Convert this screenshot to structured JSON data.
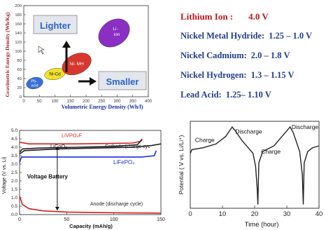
{
  "energy_density_chart": {
    "ylabel": "Gravimetric Energy Density (Wh/Kg)",
    "xlabel": "Volumetric Energy Density (Wh/l)",
    "lighter_label": "Lighter",
    "smaller_label": "Smaller",
    "chart_data": {
      "type": "scatter",
      "xlim": [
        0,
        400
      ],
      "ylim": [
        0,
        200
      ],
      "xticks": [
        "0",
        "50",
        "100",
        "150",
        "200",
        "250",
        "300",
        "350",
        "400"
      ],
      "yticks": [
        "0",
        "20",
        "40",
        "60",
        "80",
        "100",
        "120",
        "140",
        "160",
        "180",
        "200"
      ],
      "regions": [
        {
          "label": "Pb-acid",
          "x": 35,
          "y": 30,
          "color": "#3a6fd8"
        },
        {
          "label": "Ni-Cd",
          "x": 100,
          "y": 50,
          "color": "#f2e22a"
        },
        {
          "label": "Ni- MH",
          "x": 170,
          "y": 72,
          "color": "#d8372f"
        },
        {
          "label": "Li-ion",
          "x": 290,
          "y": 140,
          "color": "#8a2ec4"
        }
      ]
    }
  },
  "voltage_list": {
    "rows": [
      {
        "label": "Lithium Ion :",
        "value": "4.0 V",
        "color": "#c0171b"
      },
      {
        "label": "Nickel Metal Hydride:",
        "value": "1.25 – 1.0 V",
        "color": "#1f3e8c"
      },
      {
        "label": "Nickel Cadmium:",
        "value": "2.0 – 1.8 V",
        "color": "#1f3e8c"
      },
      {
        "label": "Nickel Hydrogen:",
        "value": "1.3 – 1.15 V",
        "color": "#1f3e8c"
      },
      {
        "label": "Lead Acid:",
        "value": "1.25– 1.10 V",
        "color": "#1f3e8c"
      }
    ]
  },
  "capacity_chart": {
    "ylabel": "Voltage (V vs. Li)",
    "xlabel": "Capacity (mAh/g)",
    "annotations": {
      "livpo": "LiVPO₄F",
      "licoo": "LiCoO₂",
      "cathode": "Cathode (charge cyc",
      "lifepo": "LiFePO₄",
      "voltage_battery": "Voltage Battery",
      "anode": "Anode (discharge cycle)"
    },
    "chart_data": {
      "type": "line",
      "xlim": [
        0,
        150
      ],
      "ylim": [
        0,
        5
      ],
      "xticks": [
        "0",
        "50",
        "100",
        "150"
      ],
      "yticks": [
        "0.0",
        "0.5",
        "1.0",
        "1.5",
        "2.0",
        "2.5",
        "3.0",
        "3.5",
        "4.0",
        "4.5",
        "5.0"
      ],
      "series": [
        {
          "name": "LiVPO₄F",
          "color": "#d42020",
          "x": [
            0,
            10,
            30,
            60,
            90,
            120,
            128,
            130
          ],
          "y": [
            4.3,
            4.2,
            4.2,
            4.2,
            4.22,
            4.25,
            4.35,
            4.5
          ]
        },
        {
          "name": "LiCoO₂",
          "color": "#222222",
          "x": [
            0,
            3,
            20,
            60,
            100,
            125,
            130
          ],
          "y": [
            3.7,
            3.9,
            3.95,
            4.0,
            4.05,
            4.15,
            4.45
          ]
        },
        {
          "name": "Cathode (charge cyc",
          "color": "#222222",
          "x": [
            0,
            5,
            40,
            80,
            120,
            140,
            150
          ],
          "y": [
            3.6,
            3.8,
            3.9,
            3.95,
            4.0,
            4.1,
            4.2
          ]
        },
        {
          "name": "LiFePO₄",
          "color": "#1c2fe0",
          "x": [
            0,
            2,
            30,
            80,
            130,
            143,
            145
          ],
          "y": [
            3.1,
            3.42,
            3.42,
            3.42,
            3.42,
            3.5,
            3.8
          ]
        },
        {
          "name": "Anode (discharge cycle)",
          "color": "#d42020",
          "x": [
            0,
            3,
            10,
            25,
            50,
            80,
            110,
            140,
            150
          ],
          "y": [
            1.1,
            0.6,
            0.35,
            0.22,
            0.15,
            0.12,
            0.1,
            0.09,
            0.08
          ]
        }
      ]
    }
  },
  "potential_chart": {
    "ylabel": "Potential ( V vs. Li/Li⁺)",
    "xlabel": "Time (hour)",
    "labels": {
      "charge1": "Charge",
      "discharge1": "Discharge",
      "charge2": "Charge",
      "discharge2": "Discharge"
    },
    "chart_data": {
      "type": "line",
      "xlim": [
        0,
        40
      ],
      "ylim": [
        2.4,
        4.7
      ],
      "xticks": [
        "0",
        "10",
        "20",
        "30",
        "40"
      ],
      "series": [
        {
          "color": "#222222",
          "x": [
            0,
            0.5,
            4,
            8,
            11,
            13,
            14,
            16,
            18,
            19.5,
            20.3,
            20.8,
            21,
            21.3,
            22.5,
            26,
            29,
            31,
            32,
            33,
            34,
            34.8,
            35.1,
            35.4,
            36.5,
            38,
            40
          ],
          "y": [
            3.85,
            3.95,
            4.0,
            4.1,
            4.3,
            4.55,
            4.45,
            4.2,
            4.0,
            3.85,
            3.5,
            2.9,
            2.5,
            3.6,
            3.9,
            4.05,
            4.35,
            4.55,
            4.4,
            4.15,
            3.9,
            3.3,
            2.5,
            3.6,
            3.9,
            4.0,
            4.05
          ]
        }
      ]
    }
  }
}
